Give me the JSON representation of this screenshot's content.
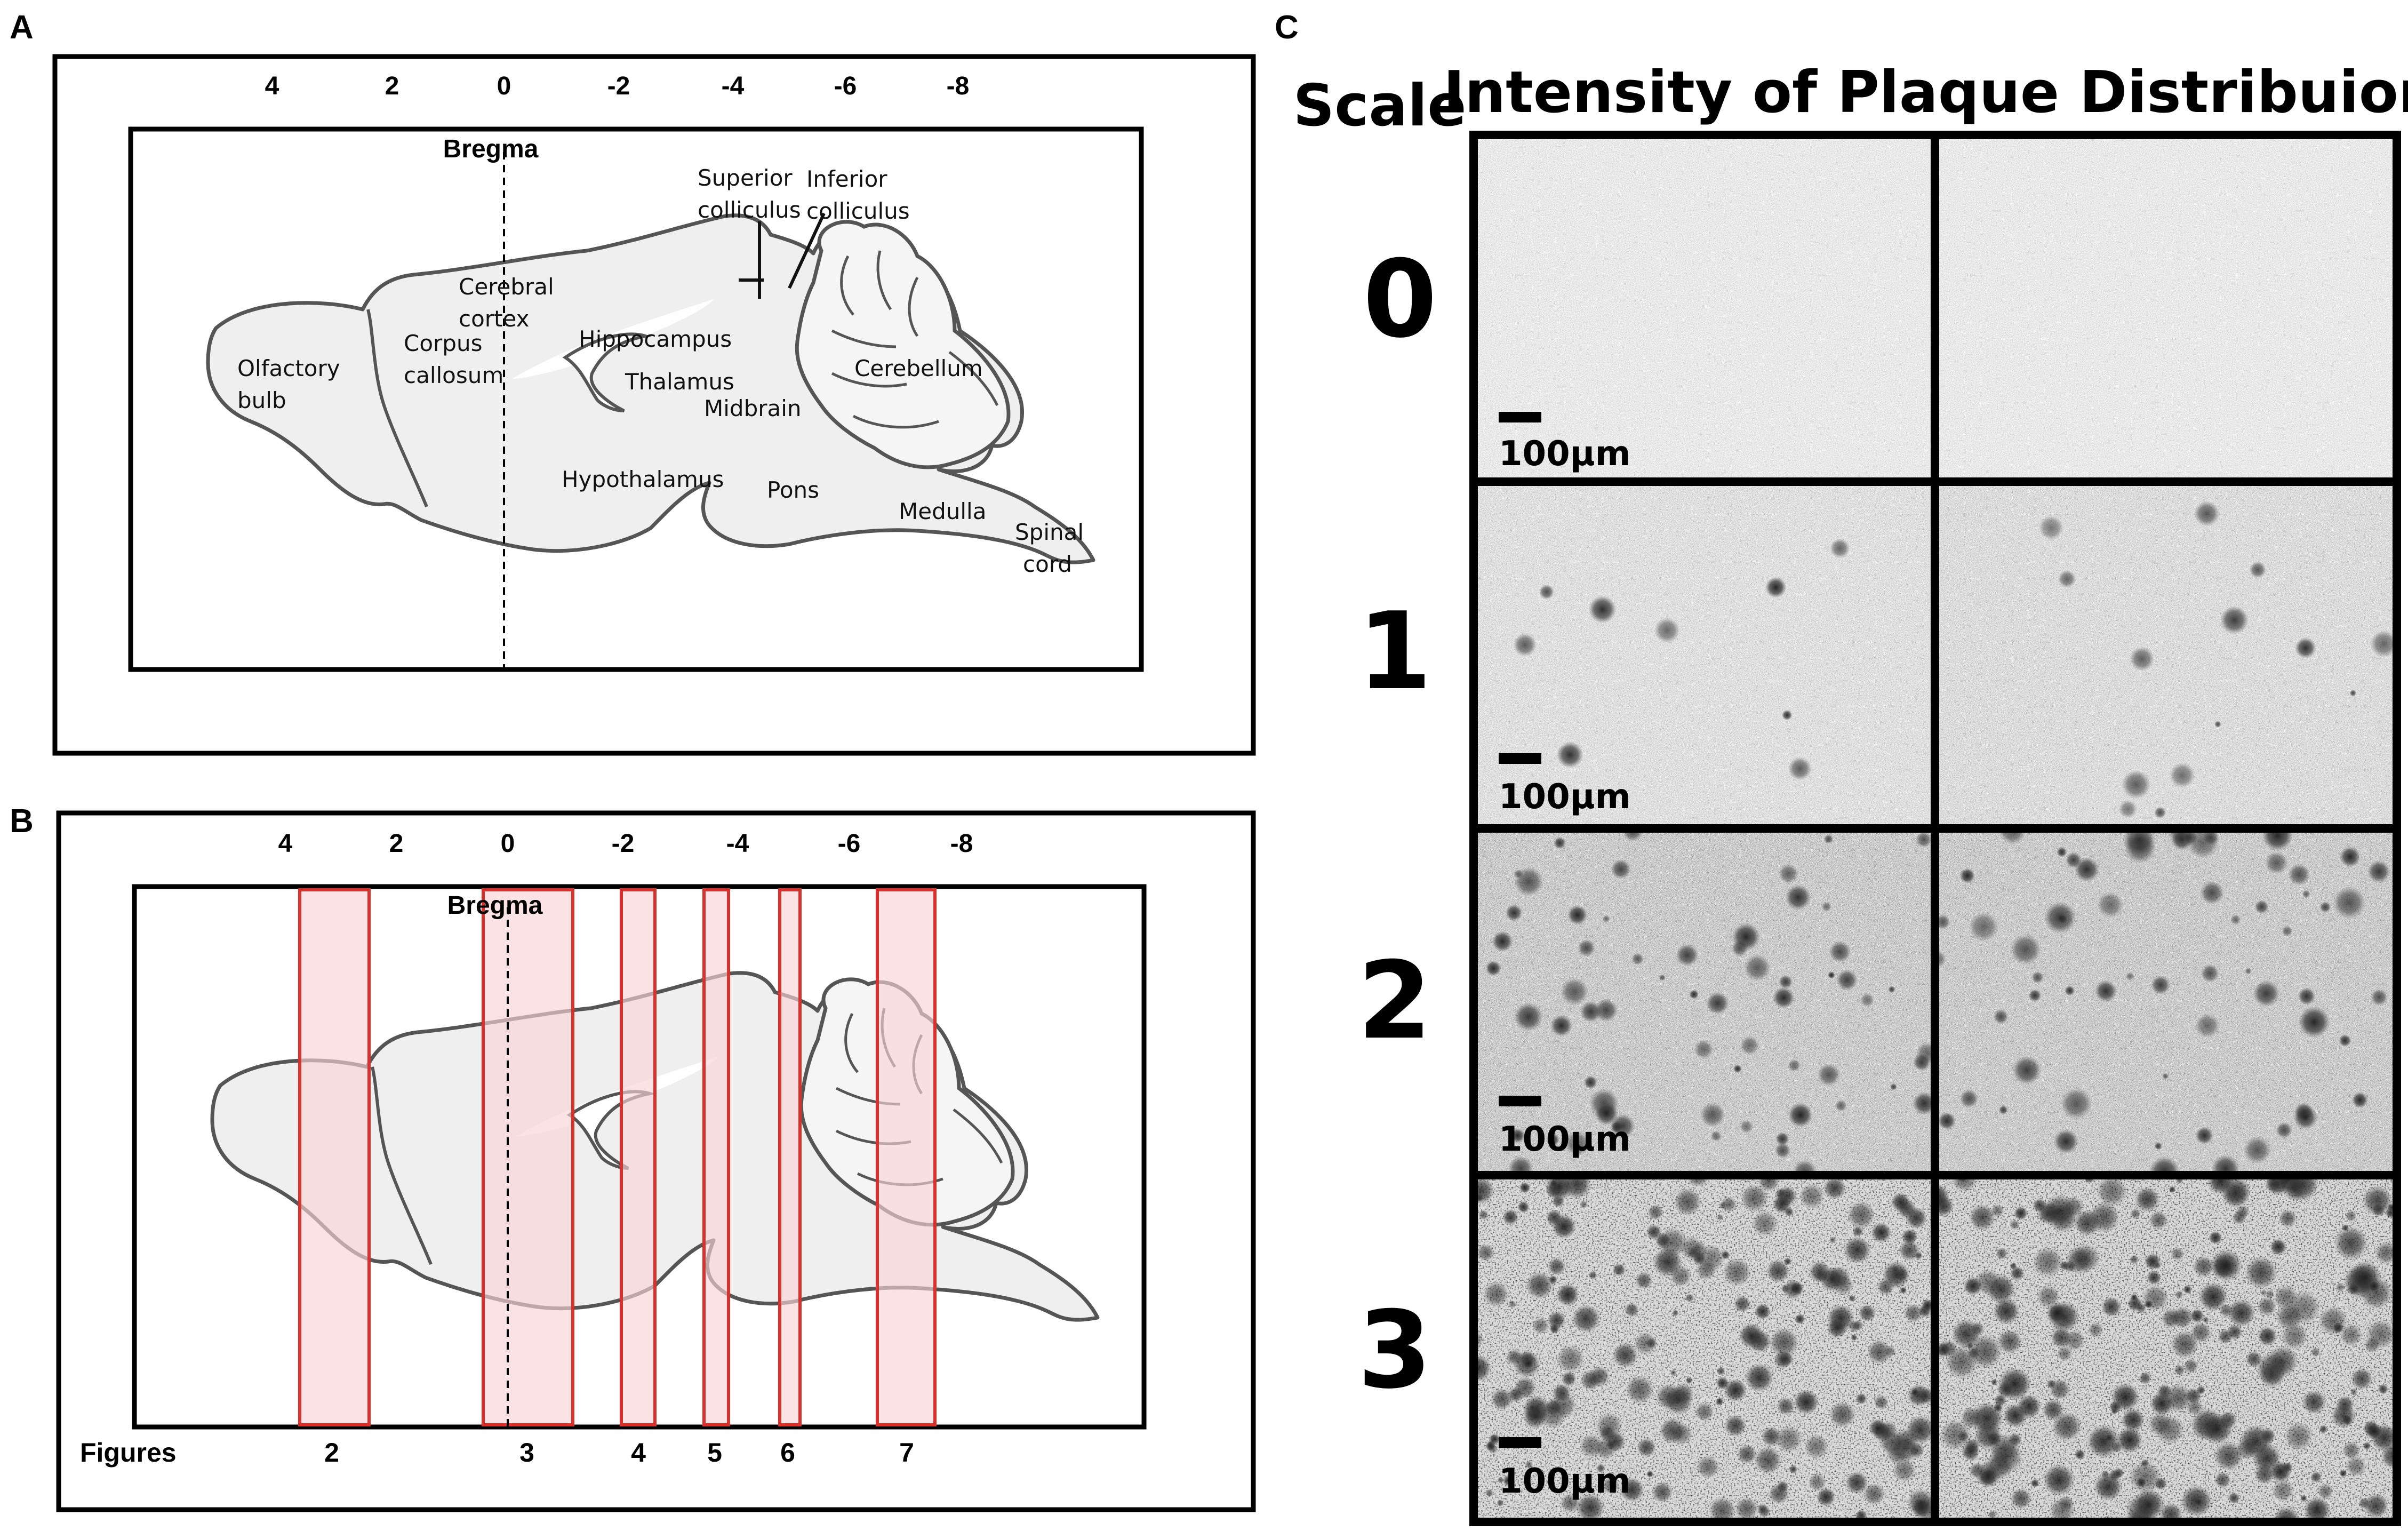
{
  "panel_a": {
    "letter": "A",
    "ticks": [
      "4",
      "2",
      "0",
      "-2",
      "-4",
      "-6",
      "-8"
    ],
    "bregma": "Bregma",
    "regions": {
      "superior_colliculus": [
        "Superior",
        "colliculus"
      ],
      "inferior_colliculus": [
        "Inferior",
        "colliculus"
      ],
      "cerebral_cortex": [
        "Cerebral",
        "cortex"
      ],
      "corpus_callosum": [
        "Corpus",
        "callosum"
      ],
      "olfactory_bulb": [
        "Olfactory",
        "bulb"
      ],
      "hippocampus": "Hippocampus",
      "thalamus": "Thalamus",
      "midbrain": "Midbrain",
      "cerebellum": "Cerebellum",
      "hypothalamus": "Hypothalamus",
      "pons": "Pons",
      "medulla": "Medulla",
      "spinal_cord": [
        "Spinal",
        "cord"
      ]
    }
  },
  "panel_b": {
    "letter": "B",
    "ticks": [
      "4",
      "2",
      "0",
      "-2",
      "-4",
      "-6",
      "-8"
    ],
    "bregma": "Bregma",
    "figures_label": "Figures",
    "figure_numbers": [
      "2",
      "3",
      "4",
      "5",
      "6",
      "7"
    ],
    "band_color": "#f9d3d6",
    "band_stroke": "#d9322c"
  },
  "panel_c": {
    "letter": "C",
    "scale_label": "Scale",
    "title": "Intensity of Plaque Distribuion",
    "scale_values": [
      "0",
      "1",
      "2",
      "3"
    ],
    "scale_bar_label": "100µm",
    "rows": [
      {
        "left": {
          "density": 0.0
        },
        "right": {
          "density": 0.0
        }
      },
      {
        "left": {
          "density": 0.15
        },
        "right": {
          "density": 0.2
        }
      },
      {
        "left": {
          "density": 0.45
        },
        "right": {
          "density": 0.45
        }
      },
      {
        "left": {
          "density": 0.85
        },
        "right": {
          "density": 0.9
        }
      }
    ]
  }
}
